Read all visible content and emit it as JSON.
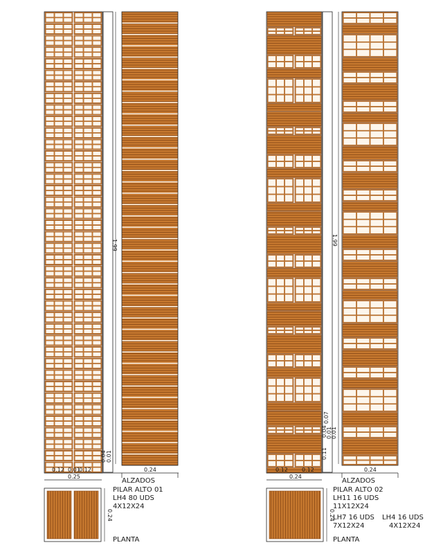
{
  "colors": {
    "brick": "#c7792f",
    "brick_dark": "#8a4a17",
    "mortar": "#fdf6ec",
    "line": "#222222"
  },
  "pillar_1": {
    "height_label": "1.99",
    "elevation_width_label": "0.24",
    "section_a_label": "0.12",
    "section_gap_label": "0.01",
    "section_b_label": "0.12",
    "bottom_dim_a": "0.04",
    "bottom_dim_b": "0.01",
    "total_width_label": "0.25",
    "alzados_label": "ALZADOS",
    "plan_dim_label": "0.24",
    "planta_label": "PLANTA",
    "title": "PILAR ALTO 01",
    "spec_lines": [
      "LH4  80  UDS",
      "4X12X24"
    ]
  },
  "pillar_2": {
    "height_label": "1.99",
    "elevation_width_label": "0.24",
    "section_a_label": "0.12",
    "section_b_label": "0.12",
    "dim_stack": [
      "0.11",
      "0.01",
      "0.01",
      "0.04",
      "0.07"
    ],
    "total_width_label": "0.24",
    "alzados_label": "ALZADOS",
    "plan_dim_label": "0.24",
    "planta_label": "PLANTA",
    "title": "PILAR ALTO 02",
    "spec_lines": [
      "LH11  16  UDS",
      "11X12X24"
    ],
    "spec_lh7": [
      "LH7  16  UDS",
      "7X12X24"
    ],
    "spec_lh4": [
      "LH4  16  UDS",
      "4X12X24"
    ]
  }
}
